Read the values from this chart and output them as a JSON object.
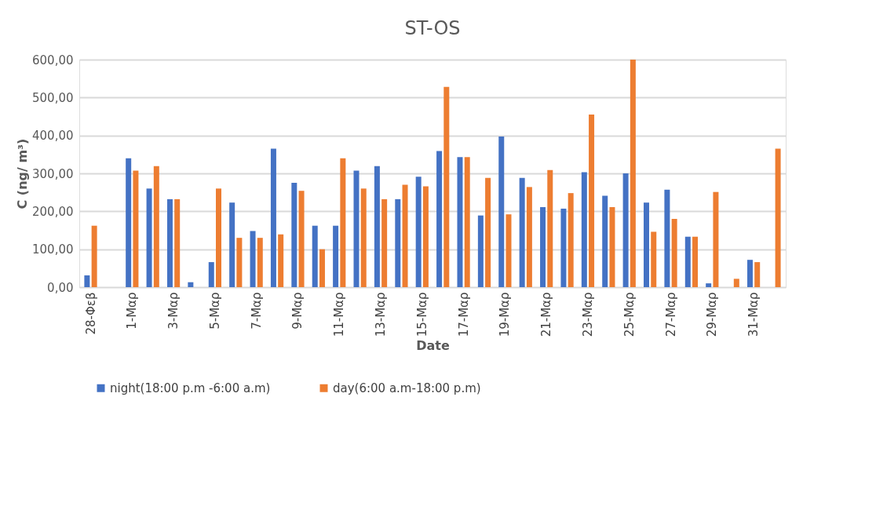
{
  "chart_data": {
    "type": "bar",
    "title": "ST-OS",
    "xlabel": "Date",
    "ylabel": "C (ng/ m³)",
    "categories": [
      "28-Φεβ",
      null,
      "1-Μαρ",
      null,
      "3-Μαρ",
      null,
      "5-Μαρ",
      null,
      "7-Μαρ",
      null,
      "9-Μαρ",
      null,
      "11-Μαρ",
      null,
      "13-Μαρ",
      null,
      "15-Μαρ",
      null,
      "17-Μαρ",
      null,
      "19-Μαρ",
      null,
      "21-Μαρ",
      null,
      "23-Μαρ",
      null,
      "25-Μαρ",
      null,
      "27-Μαρ",
      null,
      "29-Μαρ",
      null,
      "31-Μαρ",
      null
    ],
    "series": [
      {
        "name": "night(18:00 p.m -6:00 a.m)",
        "color": "#4472c4",
        "values": [
          31,
          null,
          340,
          260,
          232,
          13,
          66,
          223,
          148,
          365,
          275,
          162,
          162,
          307,
          319,
          232,
          291,
          359,
          343,
          189,
          397,
          288,
          211,
          207,
          303,
          241,
          300,
          223,
          257,
          133,
          10,
          null,
          72,
          null
        ]
      },
      {
        "name": "day(6:00 a.m-18:00 p.m)",
        "color": "#ed7d31",
        "values": [
          162,
          null,
          307,
          319,
          232,
          null,
          260,
          130,
          130,
          139,
          254,
          100,
          340,
          260,
          232,
          270,
          266,
          528,
          343,
          288,
          192,
          264,
          309,
          248,
          455,
          211,
          600,
          146,
          180,
          133,
          251,
          22,
          66,
          365
        ]
      }
    ],
    "ylim": [
      0,
      600
    ],
    "yticks": [
      {
        "value": 0,
        "label": "0,00"
      },
      {
        "value": 100,
        "label": "100,00"
      },
      {
        "value": 200,
        "label": "200,00"
      },
      {
        "value": 300,
        "label": "300,00"
      },
      {
        "value": 400,
        "label": "400,00"
      },
      {
        "value": 500,
        "label": "500,00"
      },
      {
        "value": 600,
        "label": "600,00"
      }
    ],
    "grid": "y",
    "legend": "bottom"
  }
}
